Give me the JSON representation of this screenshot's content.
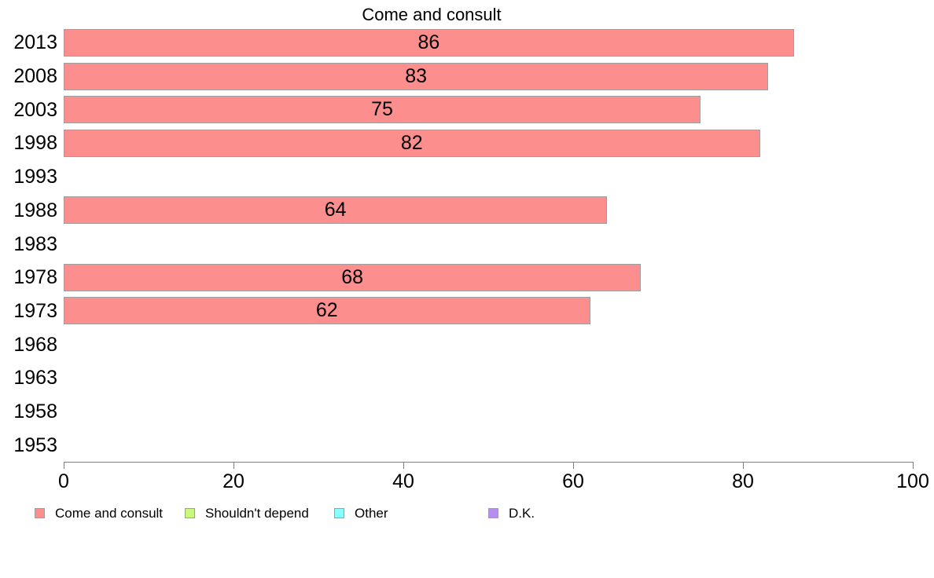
{
  "chart_data": {
    "type": "bar",
    "orientation": "horizontal",
    "title": "Come and consult",
    "series_name": "Come and consult",
    "categories": [
      "2013",
      "2008",
      "2003",
      "1998",
      "1993",
      "1988",
      "1983",
      "1978",
      "1973",
      "1968",
      "1963",
      "1958",
      "1953"
    ],
    "values": [
      86,
      83,
      75,
      82,
      null,
      64,
      null,
      68,
      62,
      null,
      null,
      null,
      null
    ],
    "xlim": [
      0,
      100
    ],
    "x_ticks": [
      "0",
      "20",
      "40",
      "60",
      "80",
      "100"
    ],
    "grid": false,
    "bar_color": "#FC8E8E",
    "bar_border_color": "#9E9E9E",
    "axis_color": "#808080",
    "text_color": "#000000",
    "legend_position": "bottom",
    "legend": [
      {
        "label": "Come and consult",
        "color": "#FC8E8E"
      },
      {
        "label": "Shouldn't depend",
        "color": "#C8F97C"
      },
      {
        "label": "Other",
        "color": "#87FFFF"
      },
      {
        "label": "D.K.",
        "color": "#B78DEF"
      }
    ]
  }
}
